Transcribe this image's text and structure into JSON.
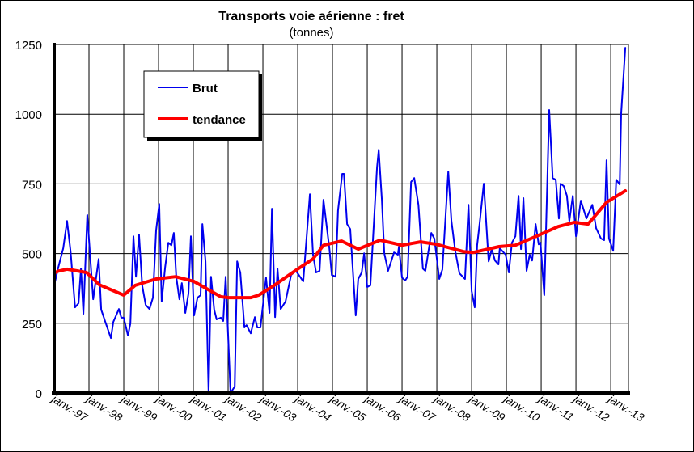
{
  "chart_data": {
    "type": "line",
    "title": "Transports voie aérienne : fret",
    "subtitle": "(tonnes)",
    "xlabel": "",
    "ylabel": "",
    "ylim": [
      0,
      1250
    ],
    "xlim": [
      1997.0,
      2013.51
    ],
    "grid": true,
    "legend_position": "top-left",
    "yticks": [
      "0",
      "250",
      "500",
      "750",
      "1000",
      "1250"
    ],
    "ytick_values": [
      0,
      250,
      500,
      750,
      1000,
      1250
    ],
    "xticks": [
      "janv.-97",
      "janv.-98",
      "janv.-99",
      "janv.-00",
      "janv.-01",
      "janv.-02",
      "janv.-03",
      "janv.-04",
      "janv.-05",
      "janv.-06",
      "janv.-07",
      "janv.-08",
      "janv.-09",
      "janv.-10",
      "janv.-11",
      "janv.-12",
      "janv.-13"
    ],
    "xtick_values": [
      1997,
      1998,
      1999,
      2000,
      2001,
      2002,
      2003,
      2004,
      2005,
      2006,
      2007,
      2008,
      2009,
      2010,
      2011,
      2012,
      2013
    ],
    "series": [
      {
        "name": "Brut",
        "color": "#0000ee",
        "points": [
          [
            1997.0,
            386
          ],
          [
            1997.12,
            452
          ],
          [
            1997.26,
            519
          ],
          [
            1997.37,
            617
          ],
          [
            1997.47,
            510
          ],
          [
            1997.6,
            307
          ],
          [
            1997.7,
            322
          ],
          [
            1997.77,
            446
          ],
          [
            1997.84,
            284
          ],
          [
            1997.95,
            638
          ],
          [
            1998.12,
            336
          ],
          [
            1998.28,
            481
          ],
          [
            1998.35,
            299
          ],
          [
            1998.47,
            255
          ],
          [
            1998.63,
            197
          ],
          [
            1998.7,
            255
          ],
          [
            1998.86,
            301
          ],
          [
            1998.93,
            270
          ],
          [
            1999.0,
            270
          ],
          [
            1999.12,
            206
          ],
          [
            1999.19,
            249
          ],
          [
            1999.28,
            562
          ],
          [
            1999.35,
            417
          ],
          [
            1999.44,
            568
          ],
          [
            1999.53,
            386
          ],
          [
            1999.63,
            316
          ],
          [
            1999.74,
            301
          ],
          [
            1999.84,
            342
          ],
          [
            1999.93,
            583
          ],
          [
            2000.02,
            678
          ],
          [
            2000.09,
            328
          ],
          [
            2000.19,
            452
          ],
          [
            2000.28,
            539
          ],
          [
            2000.37,
            530
          ],
          [
            2000.44,
            574
          ],
          [
            2000.51,
            417
          ],
          [
            2000.6,
            336
          ],
          [
            2000.67,
            394
          ],
          [
            2000.77,
            287
          ],
          [
            2000.86,
            356
          ],
          [
            2000.93,
            562
          ],
          [
            2001.02,
            278
          ],
          [
            2001.12,
            342
          ],
          [
            2001.21,
            351
          ],
          [
            2001.26,
            606
          ],
          [
            2001.35,
            472
          ],
          [
            2001.44,
            0
          ],
          [
            2001.51,
            417
          ],
          [
            2001.6,
            299
          ],
          [
            2001.67,
            264
          ],
          [
            2001.79,
            270
          ],
          [
            2001.86,
            258
          ],
          [
            2001.93,
            417
          ],
          [
            2002.07,
            0
          ],
          [
            2002.19,
            23
          ],
          [
            2002.26,
            472
          ],
          [
            2002.35,
            432
          ],
          [
            2002.47,
            235
          ],
          [
            2002.53,
            243
          ],
          [
            2002.65,
            214
          ],
          [
            2002.77,
            272
          ],
          [
            2002.84,
            235
          ],
          [
            2002.93,
            235
          ],
          [
            2003.09,
            414
          ],
          [
            2003.19,
            287
          ],
          [
            2003.26,
            661
          ],
          [
            2003.35,
            272
          ],
          [
            2003.42,
            446
          ],
          [
            2003.51,
            301
          ],
          [
            2003.65,
            328
          ],
          [
            2003.81,
            423
          ],
          [
            2003.95,
            438
          ],
          [
            2004.16,
            400
          ],
          [
            2004.35,
            713
          ],
          [
            2004.44,
            496
          ],
          [
            2004.53,
            432
          ],
          [
            2004.63,
            438
          ],
          [
            2004.74,
            693
          ],
          [
            2004.91,
            519
          ],
          [
            2004.98,
            423
          ],
          [
            2005.09,
            417
          ],
          [
            2005.16,
            655
          ],
          [
            2005.28,
            786
          ],
          [
            2005.33,
            786
          ],
          [
            2005.42,
            606
          ],
          [
            2005.51,
            588
          ],
          [
            2005.67,
            278
          ],
          [
            2005.74,
            409
          ],
          [
            2005.84,
            432
          ],
          [
            2005.91,
            501
          ],
          [
            2006.0,
            380
          ],
          [
            2006.09,
            386
          ],
          [
            2006.28,
            809
          ],
          [
            2006.33,
            872
          ],
          [
            2006.42,
            693
          ],
          [
            2006.49,
            501
          ],
          [
            2006.6,
            438
          ],
          [
            2006.77,
            504
          ],
          [
            2006.88,
            496
          ],
          [
            2006.91,
            525
          ],
          [
            2007.0,
            414
          ],
          [
            2007.09,
            403
          ],
          [
            2007.16,
            417
          ],
          [
            2007.26,
            757
          ],
          [
            2007.35,
            771
          ],
          [
            2007.47,
            675
          ],
          [
            2007.6,
            446
          ],
          [
            2007.67,
            438
          ],
          [
            2007.84,
            574
          ],
          [
            2007.93,
            554
          ],
          [
            2008.07,
            409
          ],
          [
            2008.16,
            443
          ],
          [
            2008.33,
            794
          ],
          [
            2008.42,
            617
          ],
          [
            2008.53,
            510
          ],
          [
            2008.65,
            429
          ],
          [
            2008.81,
            409
          ],
          [
            2008.91,
            675
          ],
          [
            2009.0,
            365
          ],
          [
            2009.09,
            307
          ],
          [
            2009.16,
            530
          ],
          [
            2009.23,
            606
          ],
          [
            2009.35,
            751
          ],
          [
            2009.49,
            472
          ],
          [
            2009.58,
            516
          ],
          [
            2009.67,
            475
          ],
          [
            2009.77,
            461
          ],
          [
            2009.81,
            519
          ],
          [
            2009.98,
            496
          ],
          [
            2010.07,
            432
          ],
          [
            2010.16,
            539
          ],
          [
            2010.26,
            562
          ],
          [
            2010.35,
            707
          ],
          [
            2010.42,
            516
          ],
          [
            2010.49,
            699
          ],
          [
            2010.58,
            438
          ],
          [
            2010.67,
            496
          ],
          [
            2010.74,
            475
          ],
          [
            2010.84,
            606
          ],
          [
            2010.93,
            533
          ],
          [
            2010.98,
            539
          ],
          [
            2011.09,
            351
          ],
          [
            2011.23,
            1015
          ],
          [
            2011.33,
            771
          ],
          [
            2011.42,
            765
          ],
          [
            2011.51,
            626
          ],
          [
            2011.56,
            751
          ],
          [
            2011.65,
            742
          ],
          [
            2011.74,
            707
          ],
          [
            2011.81,
            617
          ],
          [
            2011.91,
            707
          ],
          [
            2012.0,
            562
          ],
          [
            2012.14,
            690
          ],
          [
            2012.3,
            626
          ],
          [
            2012.47,
            675
          ],
          [
            2012.58,
            591
          ],
          [
            2012.72,
            554
          ],
          [
            2012.81,
            548
          ],
          [
            2012.88,
            835
          ],
          [
            2012.95,
            554
          ],
          [
            2013.07,
            510
          ],
          [
            2013.16,
            765
          ],
          [
            2013.26,
            748
          ],
          [
            2013.3,
            1003
          ],
          [
            2013.42,
            1238
          ]
        ]
      },
      {
        "name": "tendance",
        "color": "#ff0000",
        "points": [
          [
            1997.0,
            430
          ],
          [
            1997.12,
            437
          ],
          [
            1997.37,
            444
          ],
          [
            1997.93,
            432
          ],
          [
            1998.3,
            388
          ],
          [
            1999.0,
            351
          ],
          [
            1999.33,
            386
          ],
          [
            1999.93,
            409
          ],
          [
            2000.49,
            417
          ],
          [
            2001.02,
            400
          ],
          [
            2001.79,
            345
          ],
          [
            2002.02,
            342
          ],
          [
            2002.65,
            342
          ],
          [
            2002.88,
            351
          ],
          [
            2003.35,
            388
          ],
          [
            2003.98,
            443
          ],
          [
            2004.44,
            481
          ],
          [
            2004.74,
            530
          ],
          [
            2005.26,
            545
          ],
          [
            2005.74,
            516
          ],
          [
            2006.37,
            548
          ],
          [
            2007.0,
            530
          ],
          [
            2007.53,
            542
          ],
          [
            2008.0,
            533
          ],
          [
            2008.23,
            525
          ],
          [
            2008.77,
            507
          ],
          [
            2009.05,
            504
          ],
          [
            2009.79,
            525
          ],
          [
            2010.26,
            530
          ],
          [
            2010.86,
            562
          ],
          [
            2011.49,
            597
          ],
          [
            2011.95,
            612
          ],
          [
            2012.35,
            606
          ],
          [
            2012.88,
            684
          ],
          [
            2013.42,
            725
          ]
        ]
      }
    ]
  }
}
